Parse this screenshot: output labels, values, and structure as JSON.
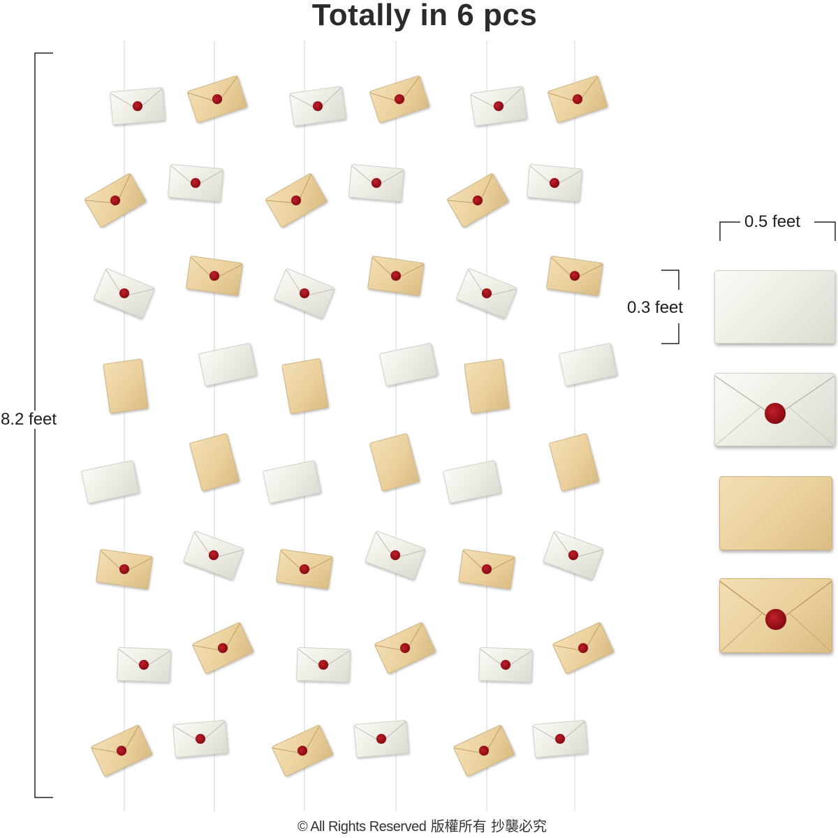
{
  "title": "Totally in 6 pcs",
  "height_label": "8.2 feet",
  "width_label": "0.5 feet",
  "envelope_height_label": "0.3 feet",
  "footer": {
    "copyright": "© All Rights Reserved",
    "notice": "版權所有 抄襲必究"
  },
  "piece_count": 6,
  "colors": {
    "white_envelope": "#ecebe3",
    "kraft_envelope": "#ead09c",
    "wax_seal": "#8e0d14",
    "string": "#d8d8d8",
    "text": "#1d1d1d"
  },
  "envelope_styles": [
    "white-flap",
    "white-sealed",
    "kraft-plain",
    "kraft-sealed"
  ]
}
